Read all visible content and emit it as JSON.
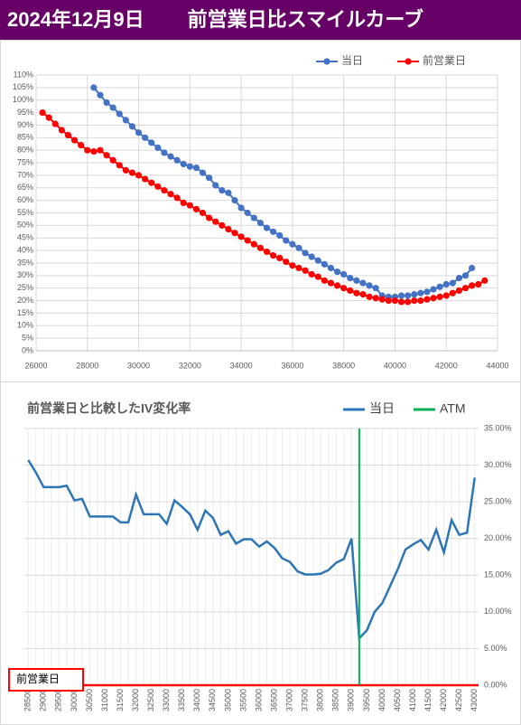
{
  "header": {
    "date": "2024年12月9日",
    "title": "前営業日比スマイルカーブ"
  },
  "chart_data": [
    {
      "type": "scatter",
      "xlim": [
        26000,
        44000
      ],
      "xticks": [
        26000,
        28000,
        30000,
        32000,
        34000,
        36000,
        38000,
        40000,
        42000,
        44000
      ],
      "ylim": [
        0,
        110
      ],
      "yticks": [
        {
          "value": 0,
          "label": "0%"
        },
        {
          "value": 5,
          "label": "5%"
        },
        {
          "value": 10,
          "label": "10%"
        },
        {
          "value": 15,
          "label": "15%"
        },
        {
          "value": 20,
          "label": "20%"
        },
        {
          "value": 25,
          "label": "25%"
        },
        {
          "value": 30,
          "label": "30%"
        },
        {
          "value": 35,
          "label": "35%"
        },
        {
          "value": 40,
          "label": "40%"
        },
        {
          "value": 45,
          "label": "45%"
        },
        {
          "value": 50,
          "label": "50%"
        },
        {
          "value": 55,
          "label": "55%"
        },
        {
          "value": 60,
          "label": "60%"
        },
        {
          "value": 65,
          "label": "65%"
        },
        {
          "value": 70,
          "label": "70%"
        },
        {
          "value": 75,
          "label": "75%"
        },
        {
          "value": 80,
          "label": "80%"
        },
        {
          "value": 85,
          "label": "85%"
        },
        {
          "value": 90,
          "label": "90%"
        },
        {
          "value": 95,
          "label": "95%"
        },
        {
          "value": 100,
          "label": "100%"
        },
        {
          "value": 105,
          "label": "105%"
        },
        {
          "value": 110,
          "label": "110%"
        }
      ],
      "grid": true,
      "legend": "top-right",
      "series": [
        {
          "name": "当日",
          "color": "#4472c4",
          "x": [
            28250,
            28500,
            28750,
            29000,
            29250,
            29500,
            29750,
            30000,
            30250,
            30500,
            30750,
            31000,
            31250,
            31500,
            31750,
            32000,
            32250,
            32500,
            32750,
            33000,
            33250,
            33500,
            33750,
            34000,
            34250,
            34500,
            34750,
            35000,
            35250,
            35500,
            35750,
            36000,
            36250,
            36500,
            36750,
            37000,
            37250,
            37500,
            37750,
            38000,
            38250,
            38500,
            38750,
            39000,
            39250,
            39500,
            39750,
            40000,
            40250,
            40500,
            40750,
            41000,
            41250,
            41500,
            41750,
            42000,
            42250,
            42500,
            42750,
            43000
          ],
          "values": [
            105,
            102,
            99,
            97,
            94.5,
            92,
            89.5,
            87,
            85,
            83,
            81,
            79,
            77.5,
            76,
            74.5,
            73.5,
            73,
            71,
            69,
            66,
            64,
            63,
            60,
            57,
            55,
            53,
            51,
            49,
            47.5,
            46,
            44,
            42.5,
            41,
            39,
            37.5,
            36,
            34.5,
            33,
            31.5,
            30.5,
            29,
            28,
            27,
            26,
            25,
            22,
            21.5,
            21.5,
            22,
            22,
            22.5,
            23,
            23.5,
            24.5,
            25.5,
            26.5,
            27,
            29,
            30,
            33
          ]
        },
        {
          "name": "前営業日",
          "color": "#ff0000",
          "x": [
            26250,
            26500,
            26750,
            27000,
            27250,
            27500,
            27750,
            28000,
            28250,
            28500,
            28750,
            29000,
            29250,
            29500,
            29750,
            30000,
            30250,
            30500,
            30750,
            31000,
            31250,
            31500,
            31750,
            32000,
            32250,
            32500,
            32750,
            33000,
            33250,
            33500,
            33750,
            34000,
            34250,
            34500,
            34750,
            35000,
            35250,
            35500,
            35750,
            36000,
            36250,
            36500,
            36750,
            37000,
            37250,
            37500,
            37750,
            38000,
            38250,
            38500,
            38750,
            39000,
            39250,
            39500,
            39750,
            40000,
            40250,
            40500,
            40750,
            41000,
            41250,
            41500,
            41750,
            42000,
            42250,
            42500,
            42750,
            43000,
            43250,
            43500
          ],
          "values": [
            95,
            93,
            90.5,
            88,
            86,
            84,
            82,
            80,
            79.5,
            80,
            78,
            76,
            74,
            72,
            71,
            70,
            68.5,
            67,
            65.5,
            64,
            62.5,
            61,
            59,
            58,
            56.5,
            55,
            53,
            51.5,
            50,
            48.5,
            47,
            45.5,
            44,
            42.5,
            41,
            39.5,
            38,
            37,
            35.5,
            34,
            33,
            32,
            30.5,
            29.5,
            28,
            27,
            26,
            25,
            24,
            23,
            22.5,
            21.5,
            21,
            20.5,
            20,
            20,
            19.5,
            19.5,
            20,
            20,
            20.5,
            21,
            21.5,
            22,
            23,
            24,
            25,
            26,
            26.5,
            28
          ]
        }
      ]
    },
    {
      "type": "line",
      "title": "前営業日と比較したIV変化率",
      "categories": [
        "28500",
        null,
        "29000",
        null,
        "29500",
        null,
        "30000",
        null,
        "30500",
        null,
        "31000",
        null,
        "31500",
        null,
        "32000",
        null,
        "32500",
        null,
        "33000",
        null,
        "33500",
        null,
        "34000",
        null,
        "34500",
        null,
        "35000",
        null,
        "35500",
        null,
        "36000",
        null,
        "36500",
        null,
        "37000",
        null,
        "37500",
        null,
        "38000",
        null,
        "38500",
        null,
        "39000",
        null,
        "39500",
        null,
        "40000",
        null,
        "40500",
        null,
        "41000",
        null,
        "41500",
        null,
        "42000",
        null,
        "42500",
        null,
        "43000"
      ],
      "ylim": [
        0,
        35
      ],
      "yticks": [
        {
          "value": 0,
          "label": "0.00%"
        },
        {
          "value": 5,
          "label": "5.00%"
        },
        {
          "value": 10,
          "label": "10.00%"
        },
        {
          "value": 15,
          "label": "15.00%"
        },
        {
          "value": 20,
          "label": "20.00%"
        },
        {
          "value": 25,
          "label": "25.00%"
        },
        {
          "value": 30,
          "label": "30.00%"
        },
        {
          "value": 35,
          "label": "35.00%"
        }
      ],
      "y_axis_position": "right",
      "grid": true,
      "legend": "top-right",
      "series": [
        {
          "name": "当日",
          "color": "#2e75b6",
          "values": [
            30.7,
            29,
            27,
            27,
            27,
            27.2,
            25.2,
            25.4,
            23,
            23,
            23,
            23,
            22.2,
            22.2,
            26,
            23.3,
            23.3,
            23.3,
            22,
            25.2,
            24.3,
            23.3,
            21.2,
            23.8,
            22.8,
            20.5,
            21,
            19.3,
            19.9,
            19.9,
            18.9,
            19.6,
            18.7,
            17.3,
            16.8,
            15.5,
            15.1,
            15.1,
            15.2,
            15.7,
            16.7,
            17.2,
            20,
            6.4,
            7.5,
            10,
            11.2,
            13.5,
            15.8,
            18.5,
            19.2,
            19.8,
            18.5,
            21.2,
            18.1,
            22.5,
            20.5,
            20.8,
            28.3
          ]
        }
      ],
      "atm": {
        "name": "ATM",
        "color": "#00b050",
        "x": 39250
      },
      "baseline": {
        "name": "前営業日",
        "color": "#ff0000",
        "value": 0
      }
    }
  ]
}
